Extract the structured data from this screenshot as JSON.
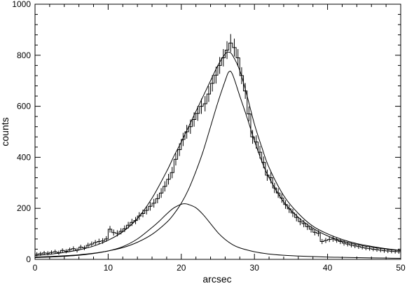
{
  "chart_data": {
    "type": "line",
    "title": "",
    "xlabel": "arcsec",
    "ylabel": "counts",
    "xlim": [
      0,
      50
    ],
    "ylim": [
      0,
      1000
    ],
    "xticks": [
      0,
      10,
      20,
      30,
      40,
      50
    ],
    "yticks": [
      0,
      200,
      400,
      600,
      800,
      1000
    ],
    "xtick_labels": [
      "0",
      "10",
      "20",
      "30",
      "40",
      "50"
    ],
    "ytick_labels": [
      "0",
      "200",
      "400",
      "600",
      "800",
      "1000"
    ],
    "grid": false,
    "legend": "none",
    "line_color": "#000000",
    "series": [
      {
        "style": "histogram-with-error-bars",
        "bin_width": 0.5,
        "x": [
          0.25,
          0.75,
          1.25,
          1.75,
          2.25,
          2.75,
          3.25,
          3.75,
          4.25,
          4.75,
          5.25,
          5.75,
          6.25,
          6.75,
          7.25,
          7.75,
          8.25,
          8.75,
          9.25,
          9.75,
          10.25,
          10.75,
          11.25,
          11.75,
          12.25,
          12.75,
          13.25,
          13.75,
          14.25,
          14.75,
          15.25,
          15.75,
          16.25,
          16.75,
          17.25,
          17.75,
          18.25,
          18.75,
          19.25,
          19.75,
          20.25,
          20.75,
          21.25,
          21.75,
          22.25,
          22.75,
          23.25,
          23.75,
          24.25,
          24.75,
          25.25,
          25.75,
          26.25,
          26.75,
          27.25,
          27.75,
          28.25,
          28.75,
          29.25,
          29.75,
          30.25,
          30.75,
          31.25,
          31.75,
          32.25,
          32.75,
          33.25,
          33.75,
          34.25,
          34.75,
          35.25,
          35.75,
          36.25,
          36.75,
          37.25,
          37.75,
          38.25,
          38.75,
          39.25,
          39.75,
          40.25,
          40.75,
          41.25,
          41.75,
          42.25,
          42.75,
          43.25,
          43.75,
          44.25,
          44.75,
          45.25,
          45.75,
          46.25,
          46.75,
          47.25,
          47.75,
          48.25,
          48.75,
          49.25,
          49.75
        ],
        "y": [
          20,
          22,
          25,
          24,
          27,
          30,
          26,
          35,
          32,
          38,
          42,
          36,
          48,
          45,
          55,
          60,
          66,
          70,
          72,
          80,
          118,
          105,
          102,
          110,
          120,
          134,
          145,
          152,
          170,
          180,
          192,
          208,
          220,
          238,
          260,
          286,
          314,
          340,
          392,
          430,
          470,
          500,
          520,
          548,
          572,
          600,
          610,
          648,
          690,
          722,
          760,
          790,
          820,
          848,
          830,
          790,
          720,
          660,
          570,
          480,
          460,
          420,
          380,
          330,
          320,
          280,
          260,
          240,
          215,
          198,
          182,
          164,
          148,
          140,
          128,
          118,
          106,
          102,
          70,
          74,
          78,
          80,
          75,
          70,
          64,
          60,
          56,
          53,
          50,
          47,
          44,
          42,
          40,
          38,
          36,
          34,
          33,
          32,
          31,
          30
        ],
        "error": [
          8,
          8,
          8,
          8,
          8,
          8,
          8,
          8,
          8,
          8,
          9,
          9,
          9,
          9,
          10,
          10,
          10,
          11,
          11,
          11,
          13,
          12,
          12,
          12,
          13,
          13,
          14,
          14,
          15,
          15,
          16,
          17,
          17,
          18,
          19,
          20,
          21,
          22,
          24,
          25,
          26,
          27,
          28,
          28,
          29,
          30,
          30,
          31,
          32,
          33,
          33,
          34,
          35,
          35,
          35,
          34,
          33,
          31,
          29,
          27,
          26,
          25,
          23,
          22,
          22,
          20,
          19,
          18,
          17,
          16,
          16,
          15,
          14,
          14,
          13,
          13,
          12,
          12,
          10,
          10,
          10,
          11,
          10,
          10,
          10,
          9,
          9,
          9,
          9,
          8,
          8,
          8,
          8,
          8,
          8,
          8,
          8,
          8,
          8,
          8
        ]
      },
      {
        "style": "curve",
        "x": [
          0,
          2,
          4,
          6,
          8,
          10,
          12,
          14,
          16,
          18,
          19,
          20,
          21,
          22,
          23,
          24,
          25,
          26,
          26.5,
          27,
          28,
          29,
          30,
          31,
          32,
          34,
          36,
          38,
          40,
          42,
          44,
          46,
          48,
          50
        ],
        "y": [
          15,
          20,
          27,
          37,
          52,
          75,
          108,
          160,
          240,
          345,
          405,
          460,
          520,
          580,
          640,
          700,
          760,
          805,
          812,
          800,
          740,
          640,
          530,
          440,
          360,
          250,
          180,
          130,
          100,
          78,
          62,
          51,
          42,
          35
        ]
      },
      {
        "style": "curve",
        "x": [
          0,
          2,
          4,
          6,
          8,
          10,
          12,
          14,
          16,
          18,
          19,
          20,
          21,
          22,
          23,
          24,
          25,
          26,
          26.5,
          27,
          28,
          29,
          30,
          31,
          32,
          34,
          36,
          38,
          40,
          42,
          44,
          46,
          48,
          50
        ],
        "y": [
          9,
          11,
          14,
          18,
          24,
          33,
          46,
          67,
          98,
          145,
          178,
          220,
          275,
          345,
          425,
          520,
          615,
          700,
          735,
          725,
          640,
          555,
          465,
          385,
          320,
          225,
          165,
          122,
          92,
          72,
          58,
          48,
          40,
          34
        ]
      },
      {
        "style": "curve",
        "x": [
          0,
          2,
          4,
          6,
          8,
          10,
          12,
          14,
          16,
          17,
          18,
          19,
          20,
          20.5,
          21,
          22,
          23,
          24,
          25,
          26,
          27,
          28,
          30,
          32,
          34,
          36,
          38,
          40,
          42,
          44,
          46,
          48,
          50
        ],
        "y": [
          7,
          9,
          12,
          16,
          23,
          33,
          50,
          80,
          125,
          150,
          178,
          202,
          216,
          218,
          215,
          202,
          175,
          140,
          105,
          78,
          58,
          45,
          30,
          21,
          16,
          13,
          11,
          9,
          8,
          7,
          6,
          5,
          4
        ]
      }
    ]
  }
}
